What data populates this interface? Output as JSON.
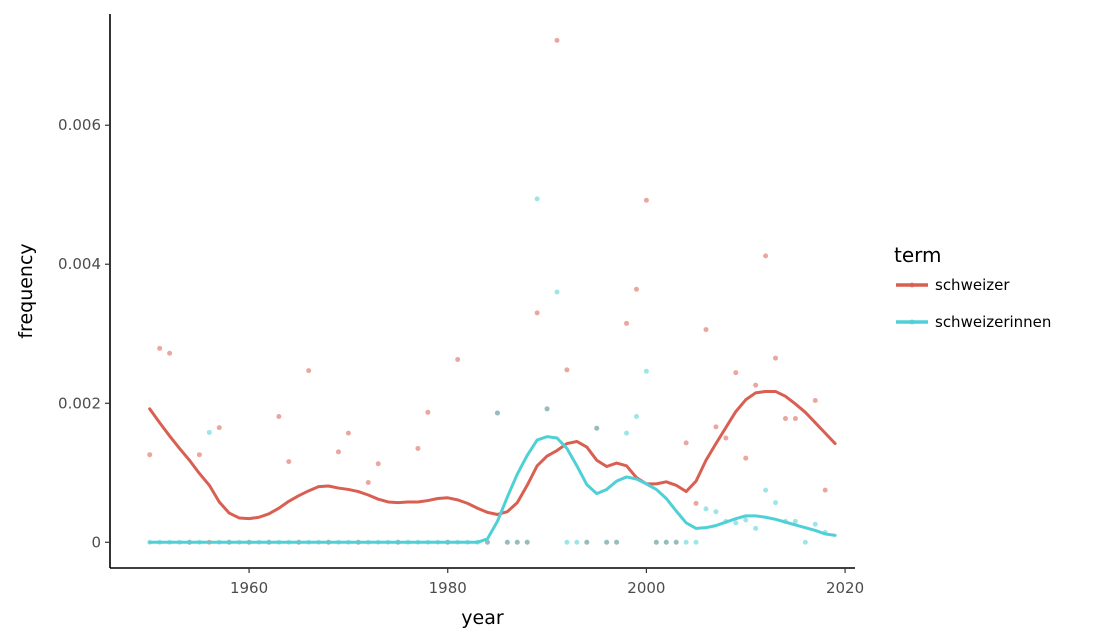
{
  "chart_data": {
    "type": "scatter",
    "xlabel": "year",
    "ylabel": "frequency",
    "xlim": [
      1946,
      2021
    ],
    "ylim": [
      -0.00037,
      0.0076
    ],
    "x_ticks": [
      1960,
      1980,
      2000,
      2020
    ],
    "x_tick_labels": [
      "1960",
      "1980",
      "2000",
      "2020"
    ],
    "y_ticks": [
      0,
      0.002,
      0.004,
      0.006
    ],
    "y_tick_labels": [
      "0",
      "0.002",
      "0.004",
      "0.006"
    ],
    "grid": false,
    "legend": {
      "title": "term",
      "placement": "right",
      "entries": [
        "schweizer",
        "schweizerinnen"
      ]
    },
    "series": [
      {
        "name": "schweizer",
        "color": "#d95f52",
        "points": [
          [
            1950,
            0.00126
          ],
          [
            1951,
            0.00279
          ],
          [
            1952,
            0.00272
          ],
          [
            1955,
            0.00126
          ],
          [
            1957,
            0.00165
          ],
          [
            1963,
            0.00181
          ],
          [
            1964,
            0.00116
          ],
          [
            1966,
            0.00247
          ],
          [
            1969,
            0.0013
          ],
          [
            1970,
            0.00157
          ],
          [
            1972,
            0.00086
          ],
          [
            1973,
            0.00113
          ],
          [
            1977,
            0.00135
          ],
          [
            1978,
            0.00187
          ],
          [
            1981,
            0.00263
          ],
          [
            1985,
            0.00186
          ],
          [
            1989,
            0.0033
          ],
          [
            1990,
            0.00192
          ],
          [
            1991,
            0.00722
          ],
          [
            1992,
            0.00248
          ],
          [
            1995,
            0.00164
          ],
          [
            1998,
            0.00315
          ],
          [
            1999,
            0.00364
          ],
          [
            2000,
            0.00492
          ],
          [
            2004,
            0.00143
          ],
          [
            2005,
            0.00056
          ],
          [
            2006,
            0.00306
          ],
          [
            2007,
            0.00166
          ],
          [
            2008,
            0.0015
          ],
          [
            2009,
            0.00244
          ],
          [
            2010,
            0.00121
          ],
          [
            2011,
            0.00226
          ],
          [
            2012,
            0.00412
          ],
          [
            2013,
            0.00265
          ],
          [
            2014,
            0.00178
          ],
          [
            2015,
            0.00178
          ],
          [
            2017,
            0.00204
          ],
          [
            2018,
            0.00075
          ],
          [
            1954,
            0
          ],
          [
            1956,
            0
          ],
          [
            1958,
            0
          ],
          [
            1960,
            0
          ],
          [
            1962,
            0
          ],
          [
            1965,
            0
          ],
          [
            1968,
            0
          ],
          [
            1971,
            0
          ],
          [
            1975,
            0
          ],
          [
            1980,
            0
          ],
          [
            1984,
            0
          ],
          [
            1986,
            0
          ],
          [
            1987,
            0
          ],
          [
            1988,
            0
          ],
          [
            1994,
            0
          ],
          [
            1996,
            0
          ],
          [
            1997,
            0
          ],
          [
            2001,
            0
          ],
          [
            2002,
            0
          ],
          [
            2003,
            0
          ]
        ],
        "smooth": [
          [
            1950,
            0.00192
          ],
          [
            1951,
            0.00172
          ],
          [
            1952,
            0.00153
          ],
          [
            1953,
            0.00135
          ],
          [
            1954,
            0.00118
          ],
          [
            1955,
            0.00099
          ],
          [
            1956,
            0.00082
          ],
          [
            1957,
            0.00058
          ],
          [
            1958,
            0.00042
          ],
          [
            1959,
            0.00035
          ],
          [
            1960,
            0.00034
          ],
          [
            1961,
            0.00036
          ],
          [
            1962,
            0.00041
          ],
          [
            1963,
            0.00049
          ],
          [
            1964,
            0.00059
          ],
          [
            1965,
            0.00067
          ],
          [
            1966,
            0.00074
          ],
          [
            1967,
            0.0008
          ],
          [
            1968,
            0.00081
          ],
          [
            1969,
            0.00078
          ],
          [
            1970,
            0.00076
          ],
          [
            1971,
            0.00073
          ],
          [
            1972,
            0.00068
          ],
          [
            1973,
            0.00062
          ],
          [
            1974,
            0.00058
          ],
          [
            1975,
            0.00057
          ],
          [
            1976,
            0.00058
          ],
          [
            1977,
            0.00058
          ],
          [
            1978,
            0.0006
          ],
          [
            1979,
            0.00063
          ],
          [
            1980,
            0.00064
          ],
          [
            1981,
            0.00061
          ],
          [
            1982,
            0.00056
          ],
          [
            1983,
            0.00049
          ],
          [
            1984,
            0.00043
          ],
          [
            1985,
            0.0004
          ],
          [
            1986,
            0.00044
          ],
          [
            1987,
            0.00057
          ],
          [
            1988,
            0.00082
          ],
          [
            1989,
            0.0011
          ],
          [
            1990,
            0.00124
          ],
          [
            1991,
            0.00132
          ],
          [
            1992,
            0.00142
          ],
          [
            1993,
            0.00145
          ],
          [
            1994,
            0.00137
          ],
          [
            1995,
            0.00118
          ],
          [
            1996,
            0.00109
          ],
          [
            1997,
            0.00114
          ],
          [
            1998,
            0.0011
          ],
          [
            1999,
            0.00093
          ],
          [
            2000,
            0.00084
          ],
          [
            2001,
            0.00084
          ],
          [
            2002,
            0.00087
          ],
          [
            2003,
            0.00082
          ],
          [
            2004,
            0.00073
          ],
          [
            2005,
            0.00088
          ],
          [
            2006,
            0.00118
          ],
          [
            2007,
            0.00142
          ],
          [
            2008,
            0.00165
          ],
          [
            2009,
            0.00188
          ],
          [
            2010,
            0.00205
          ],
          [
            2011,
            0.00215
          ],
          [
            2012,
            0.00217
          ],
          [
            2013,
            0.00217
          ],
          [
            2014,
            0.0021
          ],
          [
            2015,
            0.00199
          ],
          [
            2016,
            0.00187
          ],
          [
            2017,
            0.00172
          ],
          [
            2018,
            0.00157
          ],
          [
            2019,
            0.00142
          ]
        ]
      },
      {
        "name": "schweizerinnen",
        "color": "#4fcfd6",
        "points": [
          [
            1956,
            0.00158
          ],
          [
            1985,
            0.00186
          ],
          [
            1989,
            0.00494
          ],
          [
            1990,
            0.00192
          ],
          [
            1991,
            0.0036
          ],
          [
            1995,
            0.00164
          ],
          [
            1998,
            0.00157
          ],
          [
            1999,
            0.00181
          ],
          [
            2000,
            0.00246
          ],
          [
            2006,
            0.00048
          ],
          [
            2007,
            0.00044
          ],
          [
            2008,
            0.0003
          ],
          [
            2009,
            0.00028
          ],
          [
            2010,
            0.00032
          ],
          [
            2011,
            0.0002
          ],
          [
            2012,
            0.00075
          ],
          [
            2013,
            0.00057
          ],
          [
            2014,
            0.0003
          ],
          [
            2015,
            0.0003
          ],
          [
            2017,
            0.00026
          ],
          [
            2018,
            0.00014
          ],
          [
            1950,
            0
          ],
          [
            1951,
            0
          ],
          [
            1952,
            0
          ],
          [
            1953,
            0
          ],
          [
            1954,
            0
          ],
          [
            1955,
            0
          ],
          [
            1957,
            0
          ],
          [
            1958,
            0
          ],
          [
            1959,
            0
          ],
          [
            1960,
            0
          ],
          [
            1961,
            0
          ],
          [
            1962,
            0
          ],
          [
            1963,
            0
          ],
          [
            1964,
            0
          ],
          [
            1965,
            0
          ],
          [
            1966,
            0
          ],
          [
            1967,
            0
          ],
          [
            1968,
            0
          ],
          [
            1969,
            0
          ],
          [
            1970,
            0
          ],
          [
            1971,
            0
          ],
          [
            1972,
            0
          ],
          [
            1973,
            0
          ],
          [
            1974,
            0
          ],
          [
            1975,
            0
          ],
          [
            1976,
            0
          ],
          [
            1977,
            0
          ],
          [
            1978,
            0
          ],
          [
            1979,
            0
          ],
          [
            1980,
            0
          ],
          [
            1981,
            0
          ],
          [
            1982,
            0
          ],
          [
            1983,
            0
          ],
          [
            1984,
            0
          ],
          [
            1986,
            0
          ],
          [
            1987,
            0
          ],
          [
            1988,
            0
          ],
          [
            1992,
            0
          ],
          [
            1993,
            0
          ],
          [
            1994,
            0
          ],
          [
            1996,
            0
          ],
          [
            1997,
            0
          ],
          [
            2001,
            0
          ],
          [
            2002,
            0
          ],
          [
            2003,
            0
          ],
          [
            2004,
            0
          ],
          [
            2005,
            0
          ],
          [
            2016,
            0
          ]
        ],
        "smooth": [
          [
            1950,
            0
          ],
          [
            1951,
            0
          ],
          [
            1952,
            0
          ],
          [
            1953,
            0
          ],
          [
            1954,
            0
          ],
          [
            1955,
            0
          ],
          [
            1956,
            0
          ],
          [
            1957,
            0
          ],
          [
            1958,
            0
          ],
          [
            1959,
            0
          ],
          [
            1960,
            0
          ],
          [
            1961,
            0
          ],
          [
            1962,
            0
          ],
          [
            1963,
            0
          ],
          [
            1964,
            0
          ],
          [
            1965,
            0
          ],
          [
            1966,
            0
          ],
          [
            1967,
            0
          ],
          [
            1968,
            0
          ],
          [
            1969,
            0
          ],
          [
            1970,
            0
          ],
          [
            1971,
            0
          ],
          [
            1972,
            0
          ],
          [
            1973,
            0
          ],
          [
            1974,
            0
          ],
          [
            1975,
            0
          ],
          [
            1976,
            0
          ],
          [
            1977,
            0
          ],
          [
            1978,
            0
          ],
          [
            1979,
            0
          ],
          [
            1980,
            0
          ],
          [
            1981,
            0
          ],
          [
            1982,
            0
          ],
          [
            1983,
            0
          ],
          [
            1984,
            5e-05
          ],
          [
            1985,
            0.0003
          ],
          [
            1986,
            0.00065
          ],
          [
            1987,
            0.00098
          ],
          [
            1988,
            0.00125
          ],
          [
            1989,
            0.00147
          ],
          [
            1990,
            0.00152
          ],
          [
            1991,
            0.0015
          ],
          [
            1992,
            0.00135
          ],
          [
            1993,
            0.0011
          ],
          [
            1994,
            0.00083
          ],
          [
            1995,
            0.0007
          ],
          [
            1996,
            0.00076
          ],
          [
            1997,
            0.00088
          ],
          [
            1998,
            0.00094
          ],
          [
            1999,
            0.00091
          ],
          [
            2000,
            0.00084
          ],
          [
            2001,
            0.00076
          ],
          [
            2002,
            0.00063
          ],
          [
            2003,
            0.00045
          ],
          [
            2004,
            0.00028
          ],
          [
            2005,
            0.0002
          ],
          [
            2006,
            0.00021
          ],
          [
            2007,
            0.00024
          ],
          [
            2008,
            0.00029
          ],
          [
            2009,
            0.00034
          ],
          [
            2010,
            0.00038
          ],
          [
            2011,
            0.00038
          ],
          [
            2012,
            0.00036
          ],
          [
            2013,
            0.00033
          ],
          [
            2014,
            0.00029
          ],
          [
            2015,
            0.00025
          ],
          [
            2016,
            0.00021
          ],
          [
            2017,
            0.00017
          ],
          [
            2018,
            0.00012
          ],
          [
            2019,
            0.0001
          ]
        ]
      }
    ]
  }
}
